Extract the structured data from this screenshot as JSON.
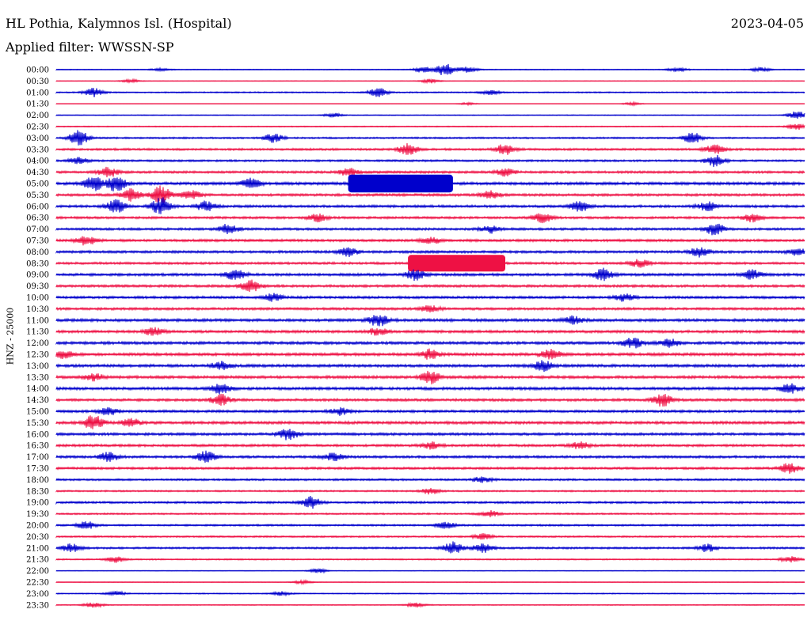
{
  "header": {
    "station": "HL Pothia, Kalymnos Isl. (Hospital)",
    "date": "2023-04-05",
    "filter": "Applied filter: WWSSN-SP"
  },
  "chart_data": {
    "type": "line",
    "title": "HL Pothia, Kalymnos Isl. (Hospital)",
    "subtitle": "Applied filter: WWSSN-SP",
    "ylabel": "HNZ - 25000",
    "colors": [
      "#0000cc",
      "#ee1144"
    ],
    "rows": [
      {
        "label": "00:00",
        "level": 0.5,
        "bursts": [
          [
            0.14,
            0.5
          ],
          [
            0.49,
            1.2
          ],
          [
            0.52,
            2.8
          ],
          [
            0.55,
            1.2
          ],
          [
            0.83,
            0.9
          ],
          [
            0.94,
            0.9
          ]
        ]
      },
      {
        "label": "00:30",
        "level": 0.3,
        "bursts": [
          [
            0.1,
            0.7
          ],
          [
            0.5,
            0.9
          ]
        ]
      },
      {
        "label": "01:00",
        "level": 0.8,
        "bursts": [
          [
            0.05,
            1.8
          ],
          [
            0.43,
            1.8
          ],
          [
            0.58,
            0.8
          ]
        ]
      },
      {
        "label": "01:30",
        "level": 0.2,
        "bursts": [
          [
            0.55,
            0.5
          ],
          [
            0.77,
            0.6
          ]
        ]
      },
      {
        "label": "02:00",
        "level": 0.5,
        "bursts": [
          [
            0.37,
            0.8
          ],
          [
            0.99,
            1.6
          ]
        ]
      },
      {
        "label": "02:30",
        "level": 0.6,
        "bursts": [
          [
            0.99,
            1.3
          ]
        ]
      },
      {
        "label": "03:00",
        "level": 1.0,
        "bursts": [
          [
            0.03,
            3.2
          ],
          [
            0.29,
            1.8
          ],
          [
            0.85,
            2.2
          ]
        ]
      },
      {
        "label": "03:30",
        "level": 1.3,
        "bursts": [
          [
            0.47,
            2.2
          ],
          [
            0.6,
            2.2
          ],
          [
            0.88,
            1.8
          ]
        ]
      },
      {
        "label": "04:00",
        "level": 1.2,
        "bursts": [
          [
            0.03,
            1.2
          ],
          [
            0.88,
            2.3
          ]
        ]
      },
      {
        "label": "04:30",
        "level": 1.4,
        "bursts": [
          [
            0.07,
            2.0
          ],
          [
            0.39,
            1.6
          ],
          [
            0.6,
            1.5
          ]
        ]
      },
      {
        "label": "05:00",
        "level": 1.7,
        "bursts": [
          [
            0.05,
            2.8
          ],
          [
            0.08,
            3.2
          ],
          [
            0.26,
            2.0
          ]
        ],
        "band": [
          0.39,
          0.53,
          1.6
        ]
      },
      {
        "label": "05:30",
        "level": 1.5,
        "bursts": [
          [
            0.1,
            2.5
          ],
          [
            0.14,
            3.6
          ],
          [
            0.18,
            2.0
          ],
          [
            0.58,
            1.5
          ]
        ]
      },
      {
        "label": "06:00",
        "level": 1.5,
        "bursts": [
          [
            0.08,
            2.8
          ],
          [
            0.14,
            3.6
          ],
          [
            0.2,
            2.0
          ],
          [
            0.7,
            2.0
          ],
          [
            0.87,
            1.8
          ]
        ]
      },
      {
        "label": "06:30",
        "level": 1.4,
        "bursts": [
          [
            0.35,
            1.6
          ],
          [
            0.65,
            2.0
          ],
          [
            0.93,
            1.6
          ]
        ]
      },
      {
        "label": "07:00",
        "level": 1.4,
        "bursts": [
          [
            0.23,
            2.0
          ],
          [
            0.58,
            1.5
          ],
          [
            0.88,
            2.4
          ]
        ]
      },
      {
        "label": "07:30",
        "level": 1.5,
        "bursts": [
          [
            0.04,
            2.0
          ],
          [
            0.5,
            1.5
          ]
        ]
      },
      {
        "label": "08:00",
        "level": 1.5,
        "bursts": [
          [
            0.39,
            1.8
          ],
          [
            0.86,
            2.0
          ],
          [
            0.99,
            1.5
          ]
        ]
      },
      {
        "label": "08:30",
        "level": 1.4,
        "bursts": [
          [
            0.78,
            1.6
          ]
        ],
        "band": [
          0.47,
          0.6,
          1.5
        ]
      },
      {
        "label": "09:00",
        "level": 1.6,
        "bursts": [
          [
            0.24,
            2.4
          ],
          [
            0.48,
            2.2
          ],
          [
            0.73,
            2.4
          ],
          [
            0.93,
            1.8
          ]
        ]
      },
      {
        "label": "09:30",
        "level": 1.5,
        "bursts": [
          [
            0.26,
            2.4
          ]
        ]
      },
      {
        "label": "10:00",
        "level": 1.5,
        "bursts": [
          [
            0.29,
            1.5
          ],
          [
            0.76,
            1.6
          ]
        ]
      },
      {
        "label": "10:30",
        "level": 1.5,
        "bursts": [
          [
            0.5,
            1.3
          ]
        ]
      },
      {
        "label": "11:00",
        "level": 1.7,
        "bursts": [
          [
            0.43,
            2.5
          ],
          [
            0.69,
            1.5
          ]
        ]
      },
      {
        "label": "11:30",
        "level": 1.6,
        "bursts": [
          [
            0.13,
            1.6
          ],
          [
            0.43,
            1.5
          ]
        ]
      },
      {
        "label": "12:00",
        "level": 1.7,
        "bursts": [
          [
            0.77,
            2.2
          ],
          [
            0.82,
            1.5
          ]
        ]
      },
      {
        "label": "12:30",
        "level": 1.7,
        "bursts": [
          [
            0.01,
            1.5
          ],
          [
            0.5,
            2.0
          ],
          [
            0.66,
            2.2
          ]
        ]
      },
      {
        "label": "13:00",
        "level": 1.7,
        "bursts": [
          [
            0.22,
            1.6
          ],
          [
            0.65,
            2.2
          ]
        ]
      },
      {
        "label": "13:30",
        "level": 1.7,
        "bursts": [
          [
            0.05,
            1.5
          ],
          [
            0.5,
            2.6
          ]
        ]
      },
      {
        "label": "14:00",
        "level": 1.7,
        "bursts": [
          [
            0.22,
            2.0
          ],
          [
            0.98,
            1.8
          ]
        ]
      },
      {
        "label": "14:30",
        "level": 1.6,
        "bursts": [
          [
            0.22,
            2.2
          ],
          [
            0.81,
            2.5
          ]
        ]
      },
      {
        "label": "15:00",
        "level": 1.5,
        "bursts": [
          [
            0.07,
            1.5
          ],
          [
            0.38,
            1.5
          ]
        ]
      },
      {
        "label": "15:30",
        "level": 1.7,
        "bursts": [
          [
            0.05,
            3.0
          ],
          [
            0.1,
            1.6
          ]
        ]
      },
      {
        "label": "16:00",
        "level": 1.6,
        "bursts": [
          [
            0.31,
            2.3
          ]
        ]
      },
      {
        "label": "16:30",
        "level": 1.5,
        "bursts": [
          [
            0.5,
            1.3
          ],
          [
            0.7,
            1.3
          ]
        ]
      },
      {
        "label": "17:00",
        "level": 1.5,
        "bursts": [
          [
            0.07,
            1.8
          ],
          [
            0.2,
            2.4
          ],
          [
            0.37,
            1.5
          ]
        ]
      },
      {
        "label": "17:30",
        "level": 1.4,
        "bursts": [
          [
            0.98,
            2.0
          ]
        ]
      },
      {
        "label": "18:00",
        "level": 1.2,
        "bursts": [
          [
            0.57,
            1.2
          ]
        ]
      },
      {
        "label": "18:30",
        "level": 1.0,
        "bursts": [
          [
            0.5,
            1.2
          ]
        ]
      },
      {
        "label": "19:00",
        "level": 1.3,
        "bursts": [
          [
            0.34,
            2.4
          ]
        ]
      },
      {
        "label": "19:30",
        "level": 1.0,
        "bursts": [
          [
            0.58,
            1.2
          ]
        ]
      },
      {
        "label": "20:00",
        "level": 1.1,
        "bursts": [
          [
            0.04,
            1.5
          ],
          [
            0.52,
            1.3
          ]
        ]
      },
      {
        "label": "20:30",
        "level": 1.0,
        "bursts": [
          [
            0.57,
            1.2
          ]
        ]
      },
      {
        "label": "21:00",
        "level": 1.2,
        "bursts": [
          [
            0.02,
            1.6
          ],
          [
            0.53,
            2.4
          ],
          [
            0.57,
            2.0
          ],
          [
            0.87,
            1.5
          ]
        ]
      },
      {
        "label": "21:30",
        "level": 0.8,
        "bursts": [
          [
            0.08,
            1.2
          ],
          [
            0.98,
            1.2
          ]
        ]
      },
      {
        "label": "22:00",
        "level": 0.3,
        "bursts": [
          [
            0.35,
            0.9
          ]
        ]
      },
      {
        "label": "22:30",
        "level": 0.4,
        "bursts": [
          [
            0.33,
            0.7
          ]
        ]
      },
      {
        "label": "23:00",
        "level": 0.6,
        "bursts": [
          [
            0.08,
            0.9
          ],
          [
            0.3,
            0.8
          ]
        ]
      },
      {
        "label": "23:30",
        "level": 0.6,
        "bursts": [
          [
            0.05,
            1.0
          ],
          [
            0.48,
            0.9
          ]
        ]
      }
    ]
  }
}
